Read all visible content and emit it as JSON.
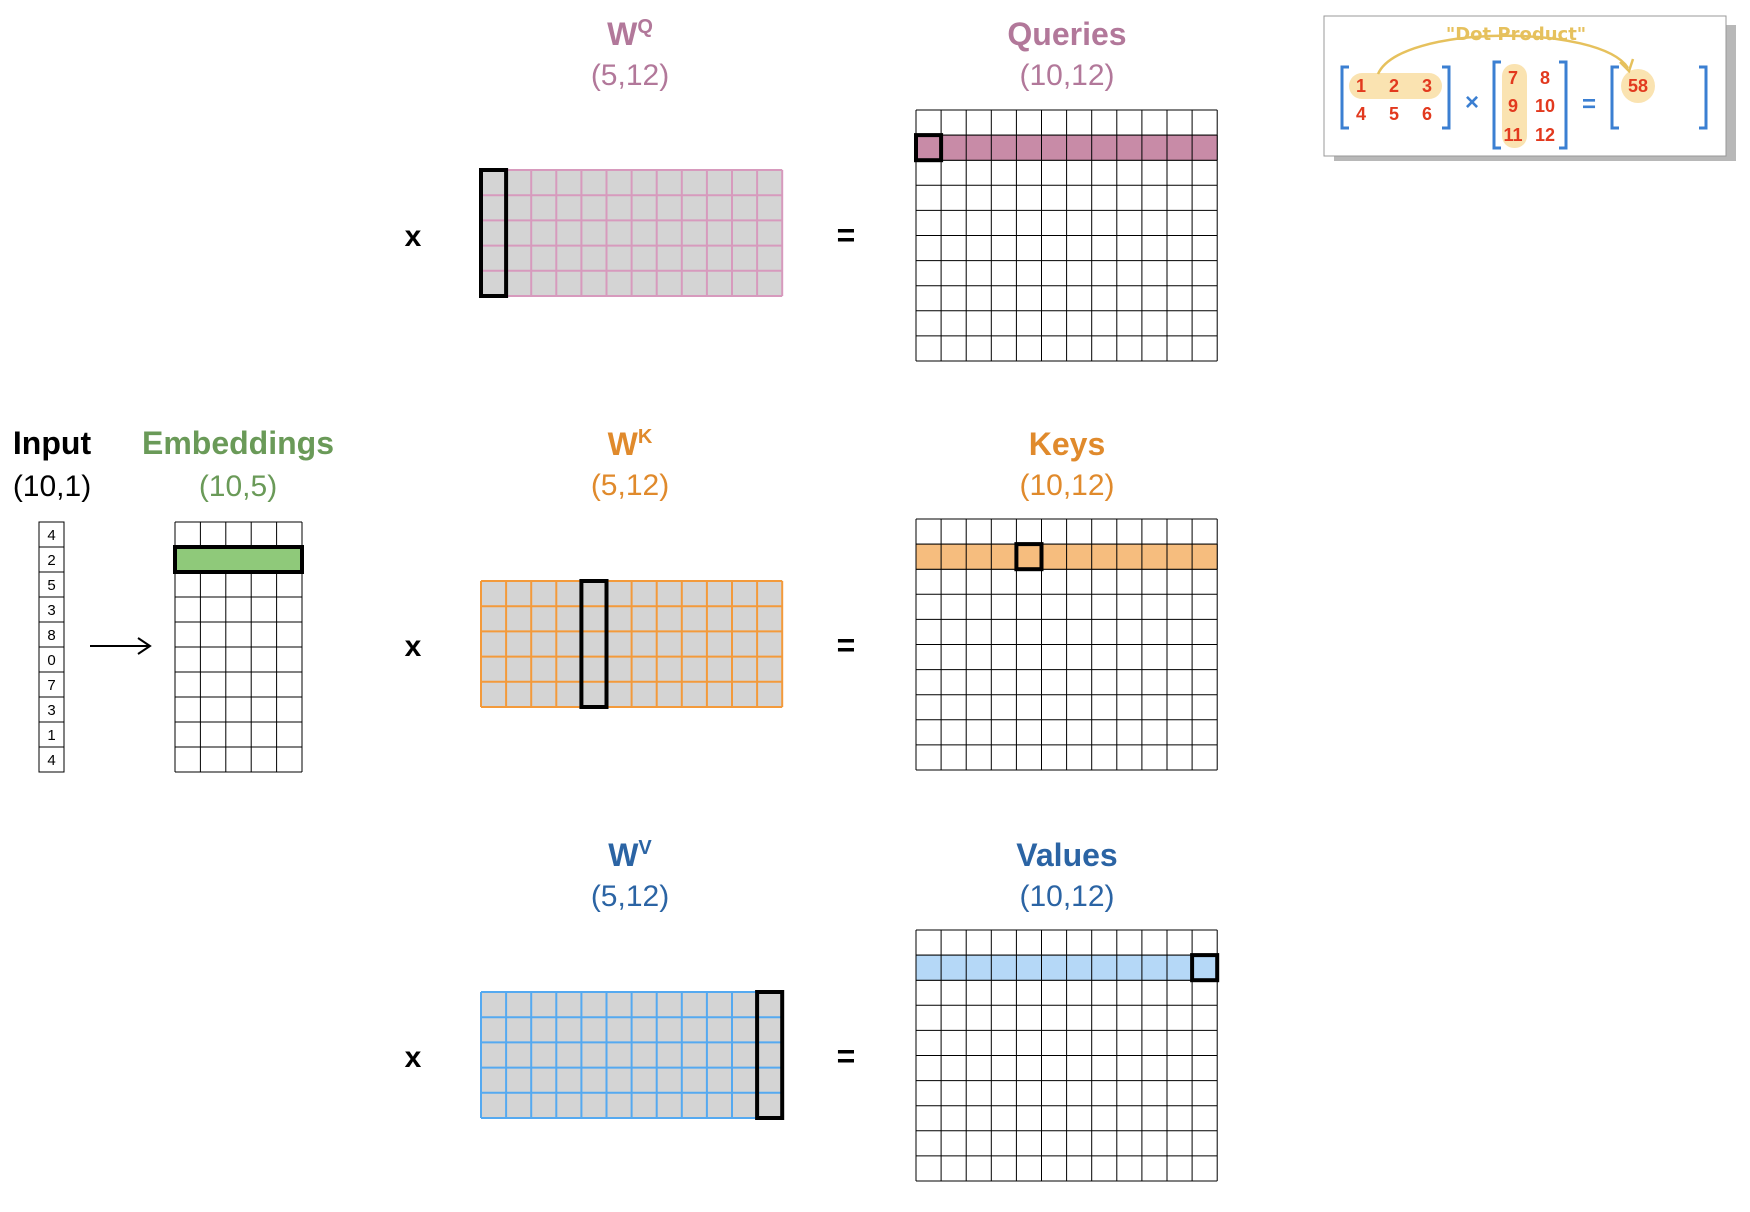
{
  "input": {
    "title": "Input",
    "shape": "(10,1)",
    "values": [
      "4",
      "2",
      "5",
      "3",
      "8",
      "0",
      "7",
      "3",
      "1",
      "4"
    ]
  },
  "embeddings": {
    "title": "Embeddings",
    "shape": "(10,5)",
    "color": "#6a9a58",
    "fill": "#8fc97a"
  },
  "weights": {
    "q": {
      "letter": "W",
      "sup": "Q",
      "shape": "(5,12)",
      "color": "#b2789a"
    },
    "k": {
      "letter": "W",
      "sup": "K",
      "shape": "(5,12)",
      "color": "#e08a2c"
    },
    "v": {
      "letter": "W",
      "sup": "V",
      "shape": "(5,12)",
      "color": "#2b64a4"
    }
  },
  "outputs": {
    "q": {
      "title": "Queries",
      "shape": "(10,12)",
      "color": "#b2789a",
      "fill": "#c88ba7"
    },
    "k": {
      "title": "Keys",
      "shape": "(10,12)",
      "color": "#e08a2c",
      "fill": "#f6bd7e"
    },
    "v": {
      "title": "Values",
      "shape": "(10,12)",
      "color": "#2b64a4",
      "fill": "#b5d8f7"
    }
  },
  "weight_grid_colors": {
    "q": "#d79abd",
    "k": "#f39a3b",
    "v": "#55a9f0",
    "cell_fill": "#d4d4d4"
  },
  "operators": {
    "multiply": "x",
    "equals": "="
  },
  "inset": {
    "caption": "\"Dot Product\"",
    "left_matrix": [
      [
        "1",
        "2",
        "3"
      ],
      [
        "4",
        "5",
        "6"
      ]
    ],
    "right_matrix": [
      [
        "7",
        "8"
      ],
      [
        "9",
        "10"
      ],
      [
        "11",
        "12"
      ]
    ],
    "result": "58",
    "times": "×",
    "equals": "=",
    "number_color": "#e2391e",
    "bracket_color": "#3b7fd2",
    "highlight_color": "#fae3b1",
    "arrow_color": "#e6c15d"
  }
}
